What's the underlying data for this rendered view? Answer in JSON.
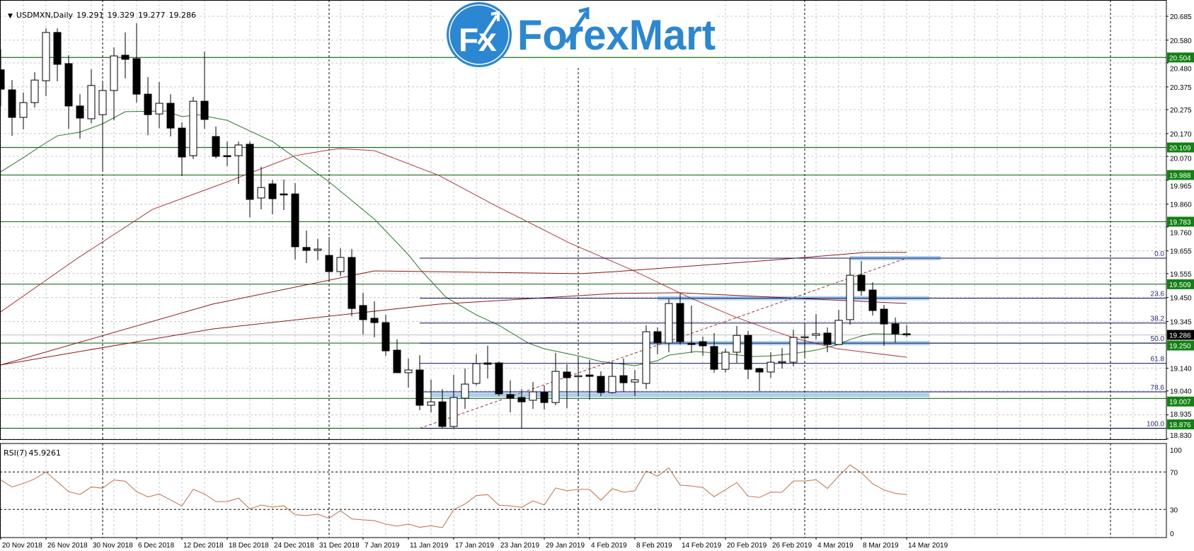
{
  "header": {
    "menu_icon": "triangle-down-icon",
    "symbol": "USDMXN,Daily",
    "open": "19.291",
    "high": "19.329",
    "low": "19.277",
    "close": "19.286"
  },
  "logo": {
    "mark": "Fx",
    "text": "ForexMart"
  },
  "colors": {
    "logo_blue": "#2b87d1",
    "support_line": "#1e6e1e",
    "price_label_bg": "#138013",
    "fib_line": "#0a0a5a",
    "fib_label": "#2a2a8a",
    "ma_fast": "#2a7a2a",
    "ma_mid": "#b03a3a",
    "ma_slow": "#8b1a1a",
    "trend_line": "#a03030",
    "zone": "#8fc0e8",
    "rsi_line": "#c0704a",
    "current_price_line": "#c0c0c0"
  },
  "chart_data": [
    {
      "type": "candlestick",
      "symbol": "USDMXN",
      "timeframe": "Daily",
      "ylim": [
        18.83,
        20.685
      ],
      "y_ticks": [
        "20.685",
        "20.580",
        "20.480",
        "20.375",
        "20.275",
        "20.170",
        "20.070",
        "19.965",
        "19.860",
        "19.760",
        "19.655",
        "19.555",
        "19.450",
        "19.345",
        "19.140",
        "19.040",
        "18.935",
        "18.830"
      ],
      "x_ticks": [
        {
          "bar": 0,
          "label": "20 Nov 2018"
        },
        {
          "bar": 4,
          "label": "26 Nov 2018"
        },
        {
          "bar": 8,
          "label": "30 Nov 2018"
        },
        {
          "bar": 12,
          "label": "6 Dec 2018"
        },
        {
          "bar": 16,
          "label": "12 Dec 2018"
        },
        {
          "bar": 20,
          "label": "18 Dec 2018"
        },
        {
          "bar": 24,
          "label": "24 Dec 2018"
        },
        {
          "bar": 28,
          "label": "31 Dec 2018"
        },
        {
          "bar": 32,
          "label": "7 Jan 2019"
        },
        {
          "bar": 36,
          "label": "11 Jan 2019"
        },
        {
          "bar": 40,
          "label": "17 Jan 2019"
        },
        {
          "bar": 44,
          "label": "23 Jan 2019"
        },
        {
          "bar": 48,
          "label": "29 Jan 2019"
        },
        {
          "bar": 52,
          "label": "4 Feb 2019"
        },
        {
          "bar": 56,
          "label": "8 Feb 2019"
        },
        {
          "bar": 60,
          "label": "14 Feb 2019"
        },
        {
          "bar": 64,
          "label": "20 Feb 2019"
        },
        {
          "bar": 68,
          "label": "26 Feb 2019"
        },
        {
          "bar": 72,
          "label": "4 Mar 2019"
        },
        {
          "bar": 76,
          "label": "8 Mar 2019"
        },
        {
          "bar": 80,
          "label": "14 Mar 2019"
        }
      ],
      "month_separator_bars": [
        9,
        29,
        51,
        71,
        98
      ],
      "grid": true,
      "ohlc": [
        [
          20.45,
          20.54,
          20.29,
          20.365
        ],
        [
          20.362,
          20.405,
          20.16,
          20.241
        ],
        [
          20.241,
          20.35,
          20.188,
          20.306
        ],
        [
          20.306,
          20.44,
          20.284,
          20.405
        ],
        [
          20.402,
          20.632,
          20.334,
          20.614
        ],
        [
          20.614,
          20.632,
          20.399,
          20.474
        ],
        [
          20.477,
          20.514,
          20.191,
          20.291
        ],
        [
          20.291,
          20.343,
          20.148,
          20.238
        ],
        [
          20.235,
          20.452,
          20.216,
          20.381
        ],
        [
          20.253,
          20.402,
          20.005,
          20.359
        ],
        [
          20.359,
          20.548,
          20.228,
          20.511
        ],
        [
          20.514,
          20.614,
          20.412,
          20.496
        ],
        [
          20.499,
          20.654,
          20.306,
          20.343
        ],
        [
          20.343,
          20.418,
          20.163,
          20.253
        ],
        [
          20.256,
          20.396,
          20.194,
          20.303
        ],
        [
          20.303,
          20.343,
          20.157,
          20.194
        ],
        [
          20.194,
          20.219,
          19.983,
          20.067
        ],
        [
          20.073,
          20.331,
          20.058,
          20.312
        ],
        [
          20.312,
          20.53,
          20.191,
          20.232
        ],
        [
          20.157,
          20.201,
          20.061,
          20.07
        ],
        [
          20.073,
          20.135,
          20.027,
          20.07
        ],
        [
          20.073,
          20.135,
          19.949,
          20.12
        ],
        [
          20.123,
          20.135,
          19.803,
          19.881
        ],
        [
          19.887,
          20.024,
          19.837,
          19.933
        ],
        [
          19.949,
          19.965,
          19.815,
          19.884
        ],
        [
          19.905,
          19.968,
          19.834,
          19.902
        ],
        [
          19.905,
          19.952,
          19.617,
          19.673
        ],
        [
          19.67,
          19.744,
          19.601,
          19.657
        ],
        [
          19.657,
          19.707,
          19.614,
          19.663
        ],
        [
          19.635,
          19.716,
          19.52,
          19.564
        ],
        [
          19.564,
          19.666,
          19.545,
          19.626
        ],
        [
          19.626,
          19.663,
          19.368,
          19.402
        ],
        [
          19.415,
          19.471,
          19.288,
          19.353
        ],
        [
          19.359,
          19.433,
          19.275,
          19.34
        ],
        [
          19.34,
          19.374,
          19.194,
          19.216
        ],
        [
          19.219,
          19.266,
          19.12,
          19.12
        ],
        [
          19.12,
          19.182,
          19.055,
          19.132
        ],
        [
          19.132,
          19.197,
          18.955,
          18.977
        ],
        [
          18.977,
          19.089,
          18.946,
          18.992
        ],
        [
          18.992,
          19.048,
          18.876,
          18.884
        ],
        [
          18.884,
          19.11,
          18.876,
          19.011
        ],
        [
          19.008,
          19.138,
          18.961,
          19.07
        ],
        [
          19.073,
          19.201,
          19.064,
          19.16
        ],
        [
          19.163,
          19.238,
          19.095,
          19.157
        ],
        [
          19.163,
          19.169,
          19.017,
          19.027
        ],
        [
          19.024,
          19.086,
          18.946,
          19.008
        ],
        [
          19.011,
          19.048,
          18.876,
          18.992
        ],
        [
          18.999,
          19.079,
          18.961,
          19.036
        ],
        [
          19.033,
          19.064,
          18.958,
          18.989
        ],
        [
          18.989,
          19.207,
          18.977,
          19.126
        ],
        [
          19.123,
          19.157,
          18.964,
          19.098
        ],
        [
          19.104,
          19.191,
          19.017,
          19.107
        ],
        [
          19.11,
          19.176,
          19.002,
          19.104
        ],
        [
          19.104,
          19.126,
          19.017,
          19.033
        ],
        [
          19.033,
          19.166,
          19.027,
          19.104
        ],
        [
          19.107,
          19.182,
          19.036,
          19.076
        ],
        [
          19.079,
          19.132,
          19.017,
          19.089
        ],
        [
          19.073,
          19.328,
          19.048,
          19.3
        ],
        [
          19.3,
          19.319,
          19.201,
          19.253
        ],
        [
          19.25,
          19.443,
          19.21,
          19.424
        ],
        [
          19.424,
          19.468,
          19.244,
          19.256
        ],
        [
          19.25,
          19.415,
          19.207,
          19.244
        ],
        [
          19.256,
          19.278,
          19.194,
          19.238
        ],
        [
          19.235,
          19.294,
          19.12,
          19.135
        ],
        [
          19.135,
          19.225,
          19.12,
          19.21
        ],
        [
          19.21,
          19.325,
          19.163,
          19.284
        ],
        [
          19.284,
          19.303,
          19.092,
          19.135
        ],
        [
          19.138,
          19.142,
          19.039,
          19.123
        ],
        [
          19.123,
          19.21,
          19.098,
          19.166
        ],
        [
          19.166,
          19.228,
          19.138,
          19.169
        ],
        [
          19.166,
          19.309,
          19.148,
          19.275
        ],
        [
          19.275,
          19.337,
          19.191,
          19.278
        ],
        [
          19.284,
          19.378,
          19.266,
          19.291
        ],
        [
          19.294,
          19.319,
          19.21,
          19.244
        ],
        [
          19.244,
          19.396,
          19.244,
          19.35
        ],
        [
          19.353,
          19.623,
          19.331,
          19.548
        ],
        [
          19.548,
          19.61,
          19.458,
          19.48
        ],
        [
          19.483,
          19.517,
          19.371,
          19.393
        ],
        [
          19.399,
          19.418,
          19.238,
          19.334
        ],
        [
          19.334,
          19.362,
          19.253,
          19.291
        ],
        [
          19.291,
          19.329,
          19.277,
          19.286
        ]
      ],
      "moving_averages": [
        {
          "role": "fast",
          "color": "#2a7a2a",
          "points": [
            [
              0,
              20.002
            ],
            [
              2,
              20.064
            ],
            [
              3.5,
              20.114
            ],
            [
              5,
              20.16
            ],
            [
              7,
              20.176
            ],
            [
              9,
              20.213
            ],
            [
              11,
              20.266
            ],
            [
              14.6,
              20.269
            ],
            [
              16,
              20.244
            ],
            [
              17.4,
              20.253
            ],
            [
              20,
              20.228
            ],
            [
              24,
              20.135
            ],
            [
              29,
              19.958
            ],
            [
              33,
              19.794
            ],
            [
              36,
              19.638
            ],
            [
              37,
              19.576
            ],
            [
              39.3,
              19.452
            ],
            [
              42,
              19.374
            ],
            [
              44,
              19.328
            ],
            [
              46.6,
              19.25
            ],
            [
              48,
              19.225
            ],
            [
              51,
              19.194
            ],
            [
              53,
              19.169
            ],
            [
              56,
              19.151
            ],
            [
              58,
              19.173
            ],
            [
              59,
              19.197
            ],
            [
              61.4,
              19.213
            ],
            [
              64,
              19.204
            ],
            [
              66.4,
              19.191
            ],
            [
              68,
              19.194
            ],
            [
              70,
              19.204
            ],
            [
              72,
              19.219
            ],
            [
              74,
              19.244
            ],
            [
              75,
              19.266
            ],
            [
              76,
              19.281
            ],
            [
              77,
              19.291
            ],
            [
              80,
              19.288
            ]
          ]
        },
        {
          "role": "mid",
          "color": "#b03a3a",
          "points": [
            [
              0,
              19.387
            ],
            [
              6.7,
              19.62
            ],
            [
              13.4,
              19.837
            ],
            [
              20,
              19.958
            ],
            [
              26,
              20.073
            ],
            [
              29,
              20.098
            ],
            [
              30,
              20.104
            ],
            [
              33,
              20.095
            ],
            [
              38.7,
              19.986
            ],
            [
              43.6,
              19.856
            ],
            [
              50.3,
              19.688
            ],
            [
              55.8,
              19.57
            ],
            [
              61,
              19.446
            ],
            [
              64.7,
              19.368
            ],
            [
              68.1,
              19.306
            ],
            [
              70.1,
              19.272
            ],
            [
              73.9,
              19.225
            ],
            [
              80,
              19.188
            ]
          ]
        },
        {
          "role": "slow-upper",
          "color": "#8b1a1a",
          "points": [
            [
              0,
              19.154
            ],
            [
              18.7,
              19.421
            ],
            [
              33,
              19.567
            ],
            [
              51.2,
              19.555
            ],
            [
              54.3,
              19.564
            ],
            [
              68,
              19.614
            ],
            [
              76.4,
              19.648
            ],
            [
              80,
              19.648
            ]
          ]
        },
        {
          "role": "slow-lower",
          "color": "#8b1a1a",
          "points": [
            [
              0,
              19.154
            ],
            [
              18.7,
              19.312
            ],
            [
              38.7,
              19.421
            ],
            [
              54.3,
              19.468
            ],
            [
              60,
              19.471
            ],
            [
              68,
              19.452
            ],
            [
              80,
              19.424
            ]
          ]
        }
      ],
      "horizontal_levels": [
        "20.504",
        "20.109",
        "19.988",
        "19.783",
        "19.509",
        "19.250",
        "19.007",
        "18.876"
      ],
      "current_price": "19.286",
      "fibonacci": {
        "from_bar": 37,
        "high": 19.623,
        "low": 18.876,
        "levels": [
          {
            "label": "0.0",
            "price": 19.623
          },
          {
            "label": "23.6",
            "price": 19.447
          },
          {
            "label": "38.2",
            "price": 19.338
          },
          {
            "label": "50.0",
            "price": 19.25
          },
          {
            "label": "61.8",
            "price": 19.161
          },
          {
            "label": "78.6",
            "price": 19.036
          },
          {
            "label": "100.0",
            "price": 18.876
          }
        ]
      },
      "trend_line": {
        "from": [
          37,
          18.876
        ],
        "to": [
          80,
          19.623
        ]
      },
      "zones": [
        {
          "price": 19.623,
          "from_bar": 75,
          "to_bar": 83
        },
        {
          "price": 19.447,
          "from_bar": 58,
          "to_bar": 82
        },
        {
          "price": 19.25,
          "from_bar": 57,
          "to_bar": 82
        },
        {
          "price": 19.022,
          "from_bar": 38,
          "to_bar": 82
        }
      ]
    },
    {
      "type": "line",
      "indicator": "RSI(7)",
      "value_label": "45.9261",
      "ylim": [
        0,
        100
      ],
      "levels": [
        70,
        30
      ],
      "y_ticks": [
        "100",
        "70",
        "30",
        "0"
      ],
      "values": [
        61.4,
        54.0,
        57.7,
        62.6,
        70.0,
        59.5,
        49.0,
        46.0,
        54.0,
        52.7,
        61.4,
        60.1,
        49.0,
        43.3,
        46.5,
        40.1,
        33.7,
        51.5,
        46.5,
        38.4,
        38.4,
        42.1,
        30.5,
        34.7,
        32.5,
        34.0,
        24.3,
        23.6,
        24.8,
        20.6,
        28.8,
        19.9,
        18.9,
        18.1,
        14.4,
        12.3,
        14.4,
        10.9,
        12.6,
        10.6,
        29.7,
        35.8,
        44.8,
        45.8,
        34.5,
        33.8,
        32.3,
        39.1,
        34.8,
        52.9,
        49.9,
        51.4,
        51.4,
        39.8,
        52.1,
        48.4,
        49.9,
        71.0,
        65.5,
        74.3,
        55.9,
        54.9,
        53.4,
        43.6,
        51.1,
        58.7,
        44.1,
        42.8,
        48.4,
        48.4,
        60.4,
        60.4,
        61.7,
        52.4,
        65.5,
        77.5,
        69.2,
        57.4,
        50.9,
        47.1,
        45.9
      ]
    }
  ]
}
